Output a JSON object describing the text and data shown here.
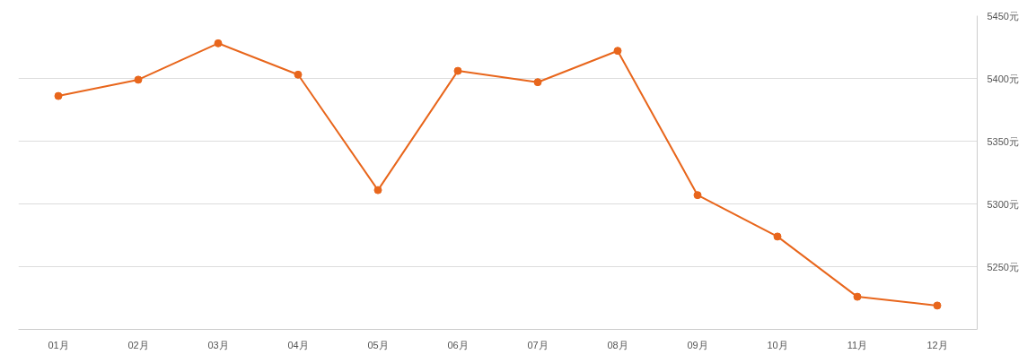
{
  "chart_data": {
    "type": "line",
    "categories": [
      "01月",
      "02月",
      "03月",
      "04月",
      "05月",
      "06月",
      "07月",
      "08月",
      "09月",
      "10月",
      "11月",
      "12月"
    ],
    "series": [
      {
        "color": "#e8661c",
        "values": [
          5386,
          5399,
          5428,
          5403,
          5311,
          5406,
          5397,
          5422,
          5307,
          5274,
          5226,
          5219
        ]
      }
    ],
    "ylim": [
      5200,
      5450
    ],
    "yticks": [
      {
        "value": 5200,
        "label": null
      },
      {
        "value": 5250,
        "label": "5250元"
      },
      {
        "value": 5300,
        "label": "5300元"
      },
      {
        "value": 5350,
        "label": "5350元"
      },
      {
        "value": 5400,
        "label": "5400元"
      },
      {
        "value": 5450,
        "label": "5450元"
      }
    ],
    "grid": "y",
    "marker": "circle",
    "line_style": "solid"
  }
}
